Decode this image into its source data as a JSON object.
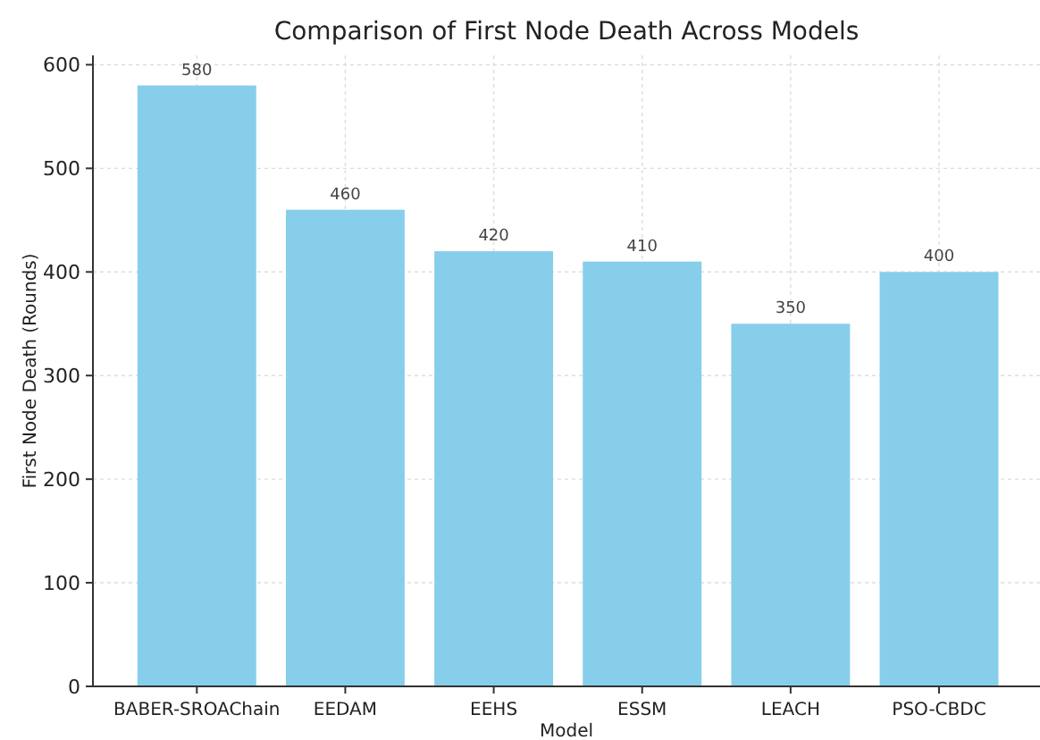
{
  "chart_data": {
    "type": "bar",
    "title": "Comparison of First Node Death Across Models",
    "xlabel": "Model",
    "ylabel": "First Node Death (Rounds)",
    "categories": [
      "BABER-SROAChain",
      "EEDAM",
      "EEHS",
      "ESSM",
      "LEACH",
      "PSO-CBDC"
    ],
    "values": [
      580,
      460,
      420,
      410,
      350,
      400
    ],
    "color": "#87ceeb",
    "ylim": [
      0,
      609
    ],
    "yticks": [
      0,
      100,
      200,
      300,
      400,
      500,
      600
    ],
    "grid": true,
    "data_labels": true
  }
}
